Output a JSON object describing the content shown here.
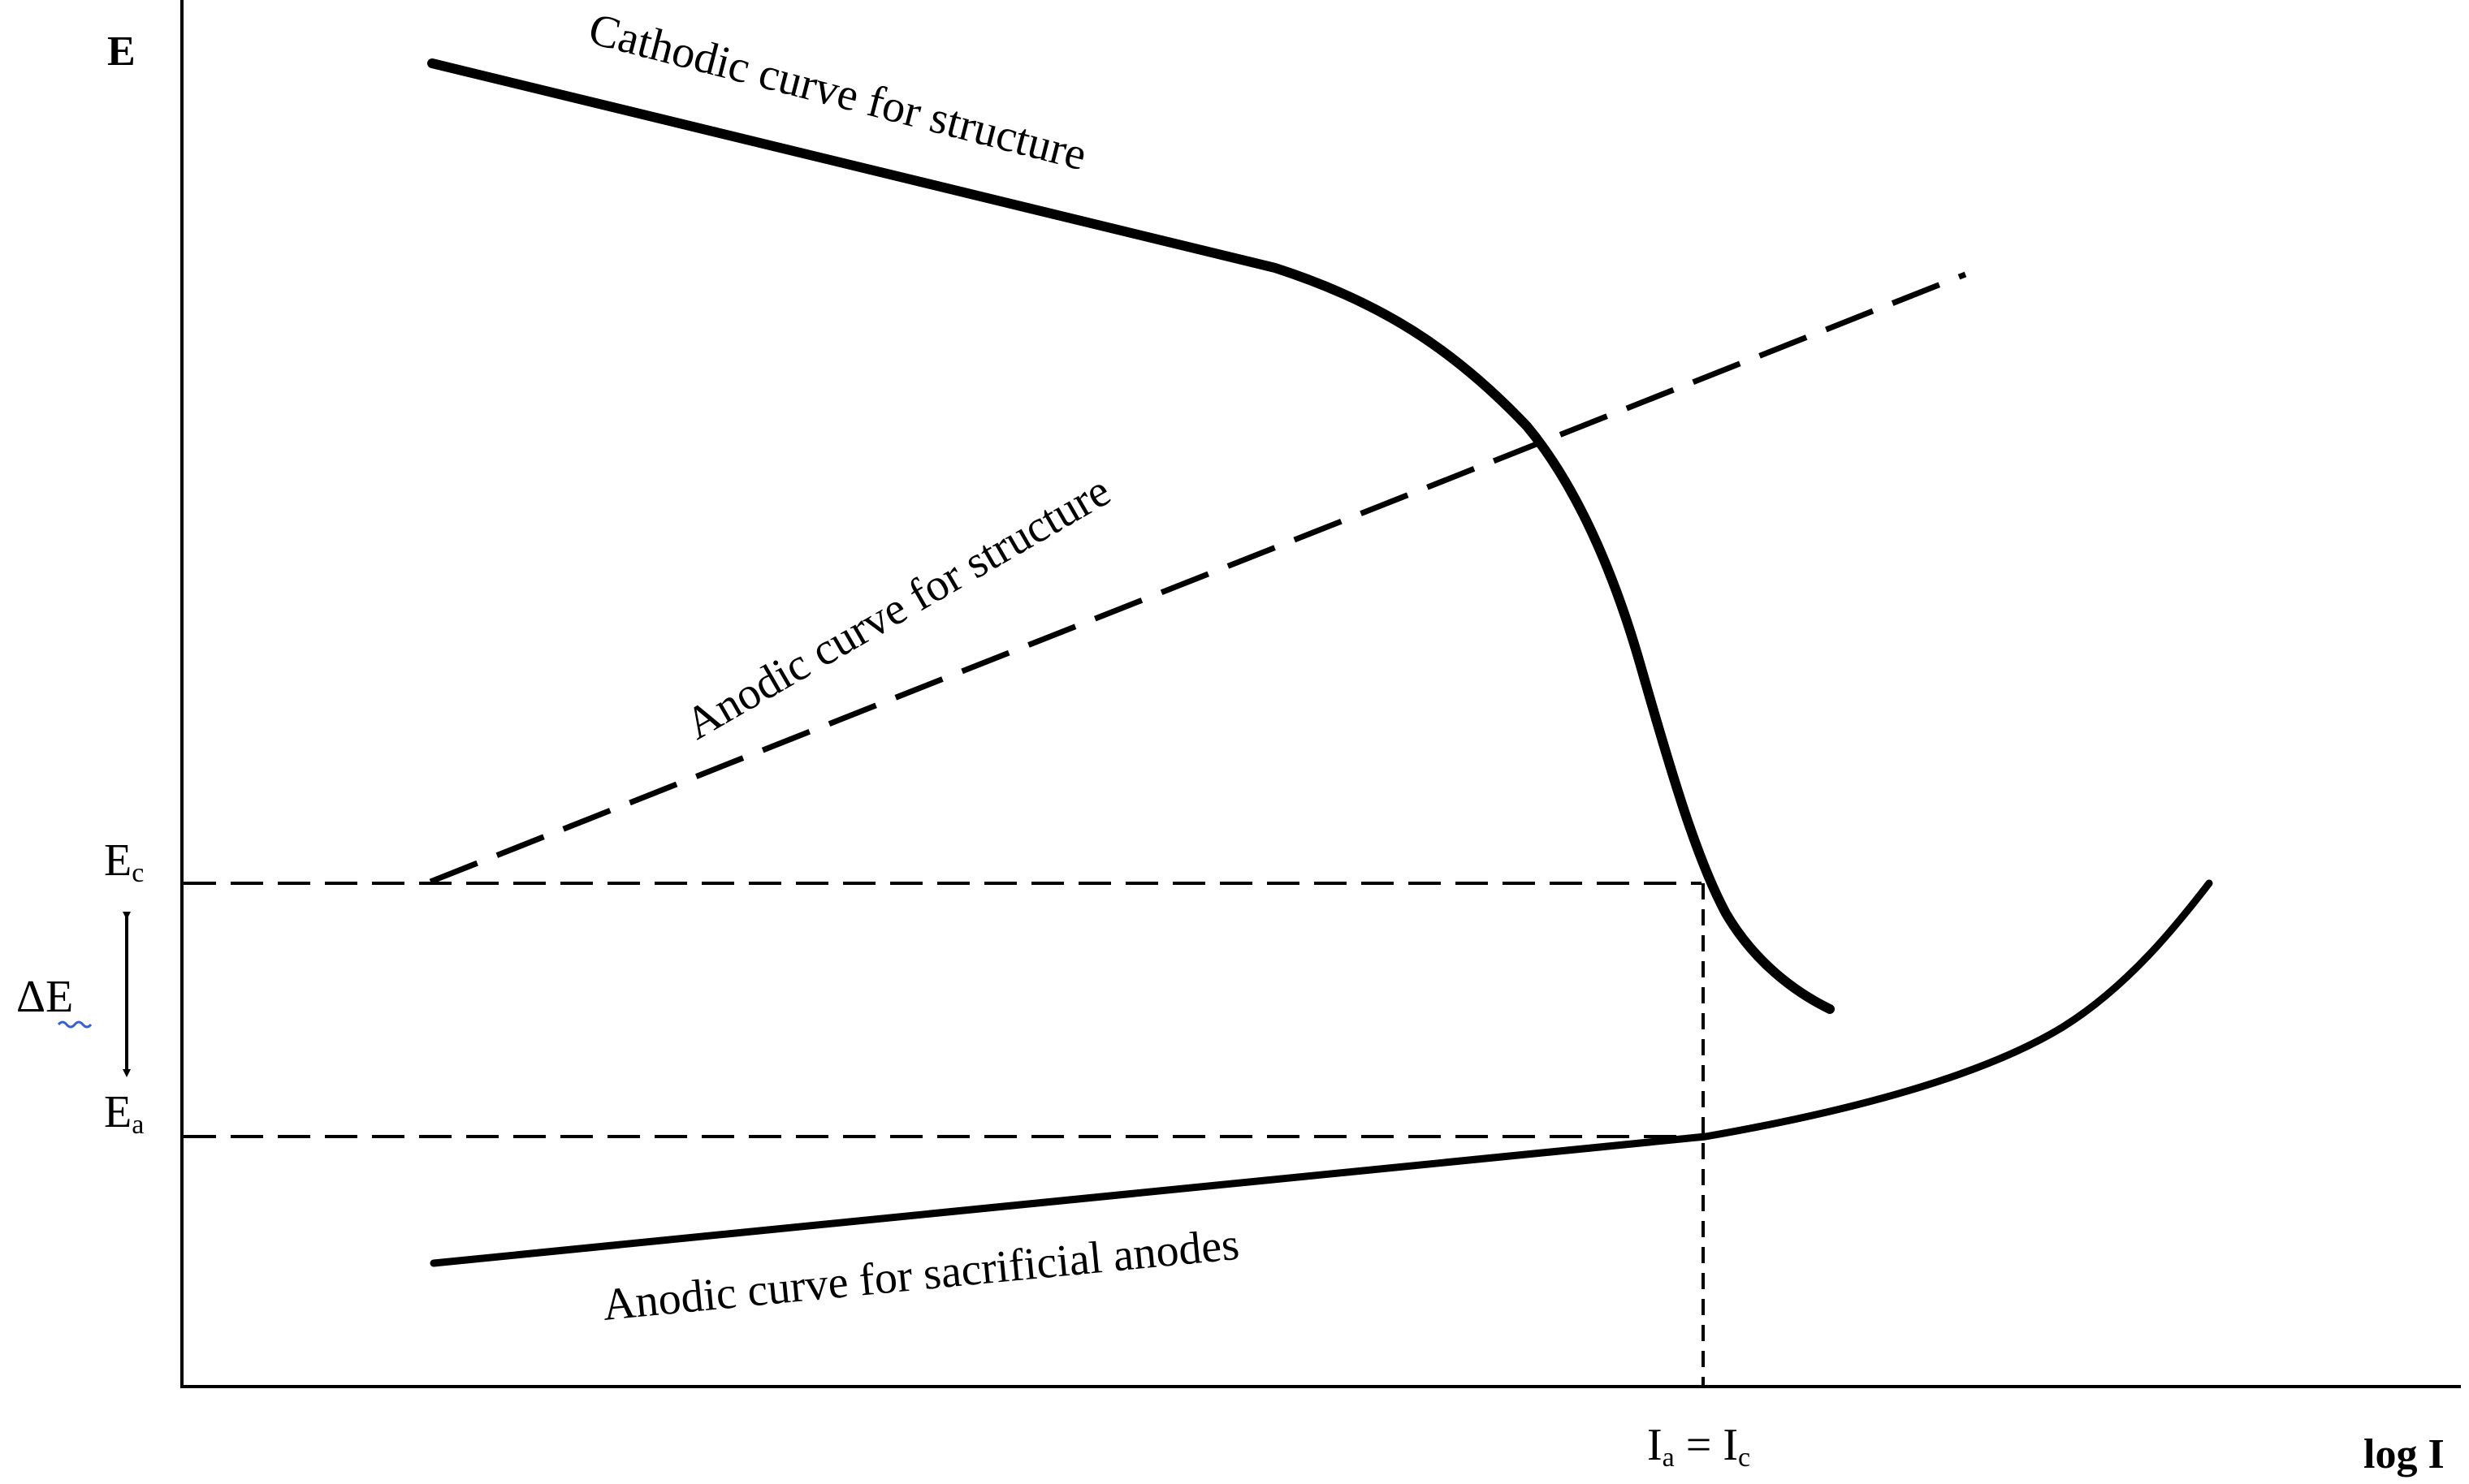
{
  "axes": {
    "y_label": "E",
    "x_label": "log I"
  },
  "symbols": {
    "ec_main": "E",
    "ec_sub": "c",
    "ea_main": "E",
    "ea_sub": "a",
    "delta_e": "ΔE",
    "current_ia_main": "I",
    "current_ia_sub": "a",
    "current_equals": " = ",
    "current_ic_main": "I",
    "current_ic_sub": "c"
  },
  "curves": {
    "cathodic_structure": "Cathodic curve for structure",
    "anodic_structure": "Anodic curve for structure",
    "anodic_sacrificial": "Anodic curve for sacrificial anodes"
  },
  "colors": {
    "ink": "#000000",
    "background": "#ffffff"
  }
}
